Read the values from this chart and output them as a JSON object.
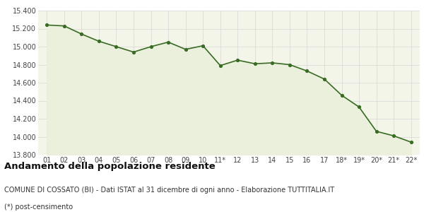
{
  "x_labels": [
    "01",
    "02",
    "03",
    "04",
    "05",
    "06",
    "07",
    "08",
    "09",
    "10",
    "11*",
    "12",
    "13",
    "14",
    "15",
    "16",
    "17",
    "18*",
    "19*",
    "20*",
    "21*",
    "22*"
  ],
  "y_values": [
    15240,
    15230,
    15140,
    15060,
    15000,
    14940,
    15000,
    15050,
    14970,
    15010,
    14790,
    14850,
    14810,
    14820,
    14800,
    14730,
    14640,
    14460,
    14330,
    14060,
    14010,
    13940
  ],
  "ylim": [
    13800,
    15400
  ],
  "yticks": [
    13800,
    14000,
    14200,
    14400,
    14600,
    14800,
    15000,
    15200,
    15400
  ],
  "line_color": "#3a6b25",
  "fill_color": "#eaf0dc",
  "marker_color": "#3a6b25",
  "bg_color": "#f2f5e8",
  "grid_color": "#d8d8d8",
  "title": "Andamento della popolazione residente",
  "subtitle": "COMUNE DI COSSATO (BI) - Dati ISTAT al 31 dicembre di ogni anno - Elaborazione TUTTITALIA.IT",
  "footnote": "(*) post-censimento",
  "title_fontsize": 9.5,
  "subtitle_fontsize": 7,
  "footnote_fontsize": 7
}
